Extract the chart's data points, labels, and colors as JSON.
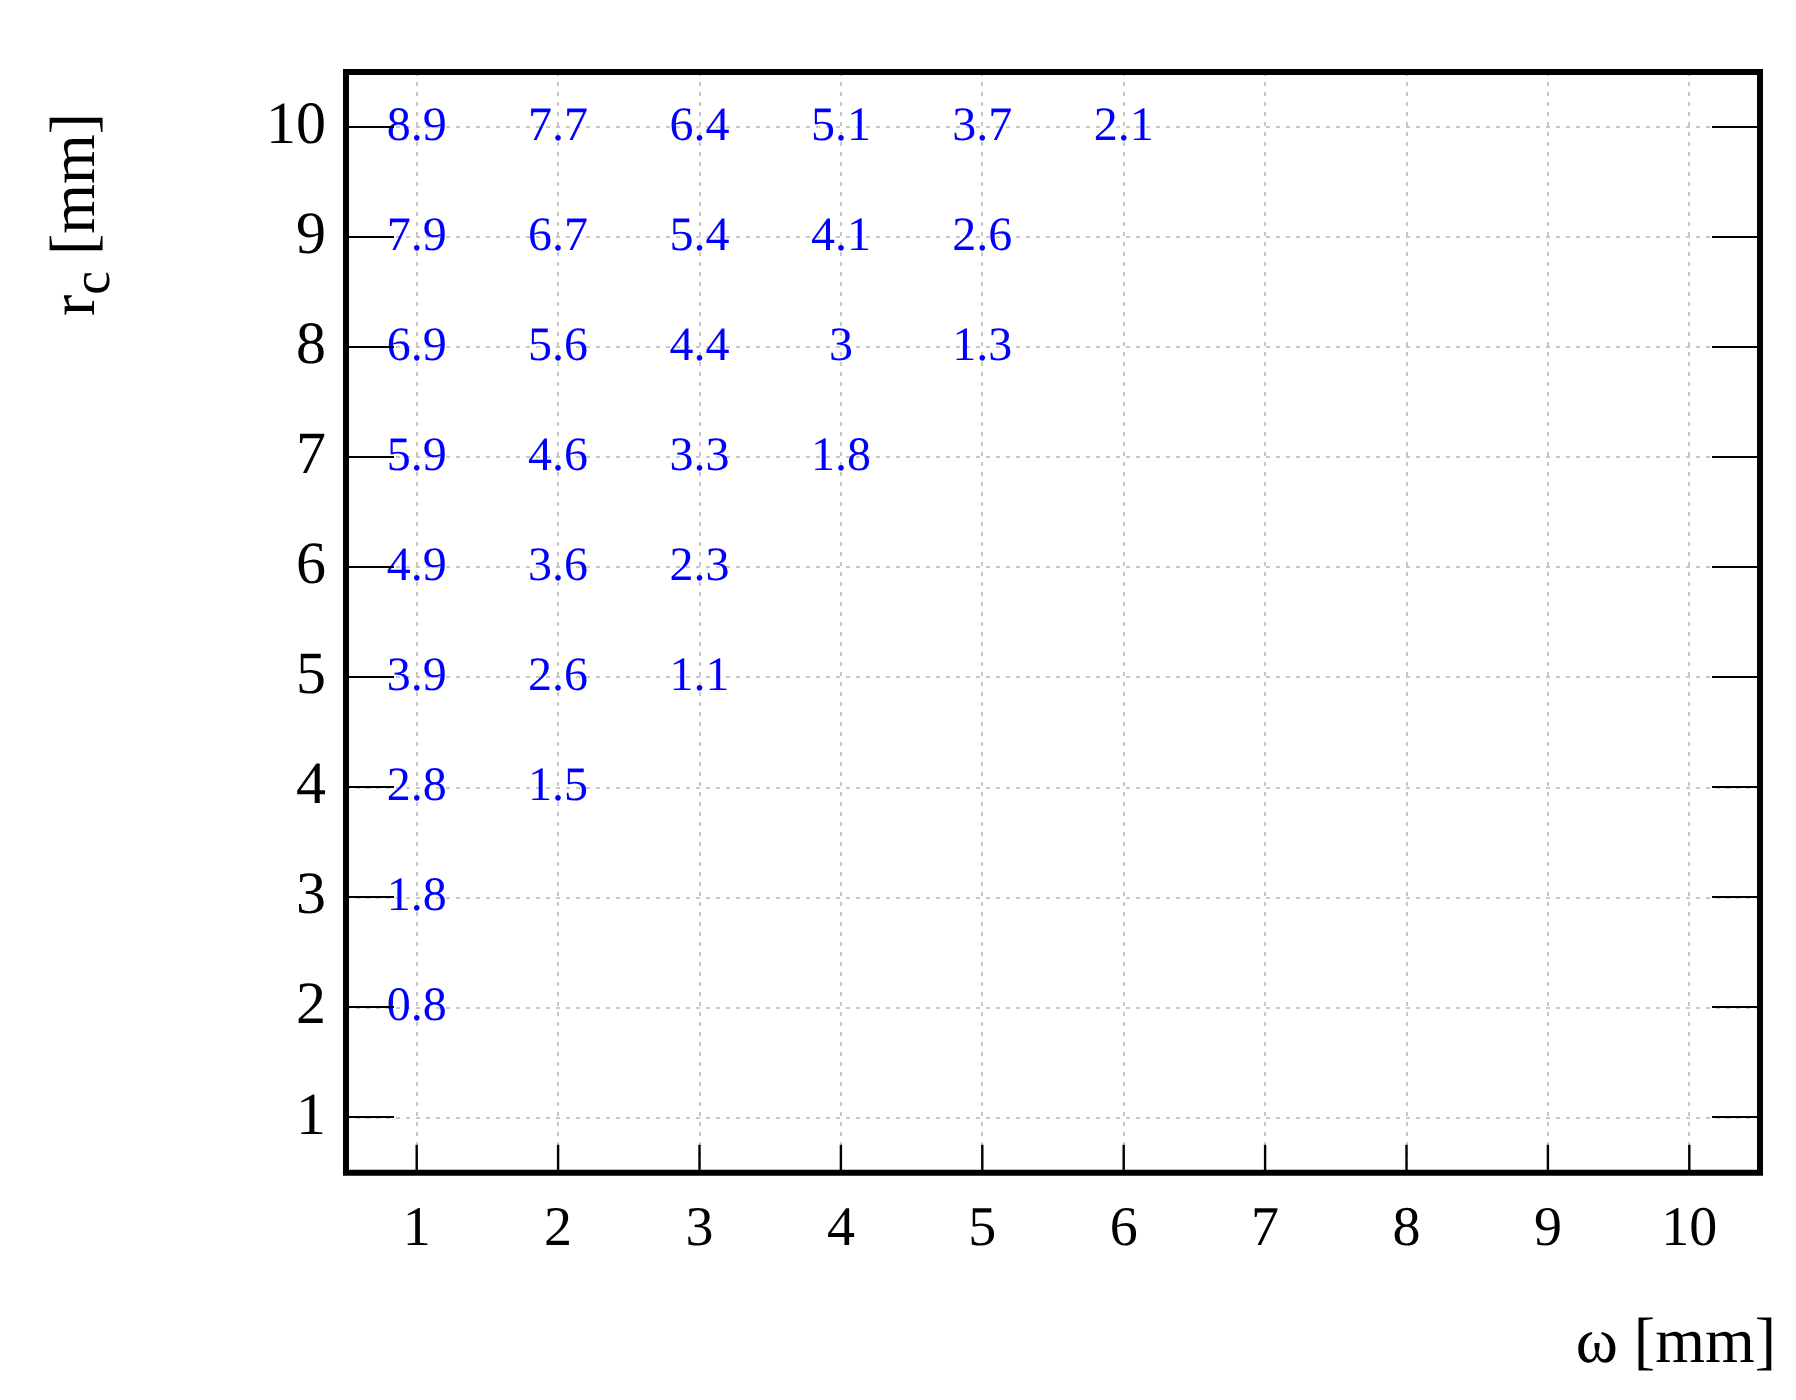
{
  "chart_data": {
    "type": "heatmap",
    "xlabel": "ω [mm]",
    "ylabel": "r$_{c}$ [mm]",
    "color": "#0000ff",
    "grid": true,
    "data_labels": true,
    "categories": [
      "1",
      "2",
      "3",
      "4",
      "5",
      "6",
      "7",
      "8",
      "9",
      "10"
    ],
    "y_categories": [
      "10",
      "9",
      "8",
      "7",
      "6",
      "5",
      "4",
      "3",
      "2",
      "1"
    ],
    "cells": [
      [
        8.9,
        7.7,
        6.4,
        5.1,
        3.7,
        2.1,
        null,
        null,
        null,
        null
      ],
      [
        7.9,
        6.7,
        5.4,
        4.1,
        2.6,
        null,
        null,
        null,
        null,
        null
      ],
      [
        6.9,
        5.6,
        4.4,
        3,
        1.3,
        null,
        null,
        null,
        null,
        null
      ],
      [
        5.9,
        4.6,
        3.3,
        1.8,
        null,
        null,
        null,
        null,
        null,
        null
      ],
      [
        4.9,
        3.6,
        2.3,
        null,
        null,
        null,
        null,
        null,
        null,
        null
      ],
      [
        3.9,
        2.6,
        1.1,
        null,
        null,
        null,
        null,
        null,
        null,
        null
      ],
      [
        2.8,
        1.5,
        null,
        null,
        null,
        null,
        null,
        null,
        null,
        null
      ],
      [
        1.8,
        null,
        null,
        null,
        null,
        null,
        null,
        null,
        null,
        null
      ],
      [
        0.8,
        null,
        null,
        null,
        null,
        null,
        null,
        null,
        null,
        null
      ],
      [
        null,
        null,
        null,
        null,
        null,
        null,
        null,
        null,
        null,
        null
      ]
    ]
  }
}
